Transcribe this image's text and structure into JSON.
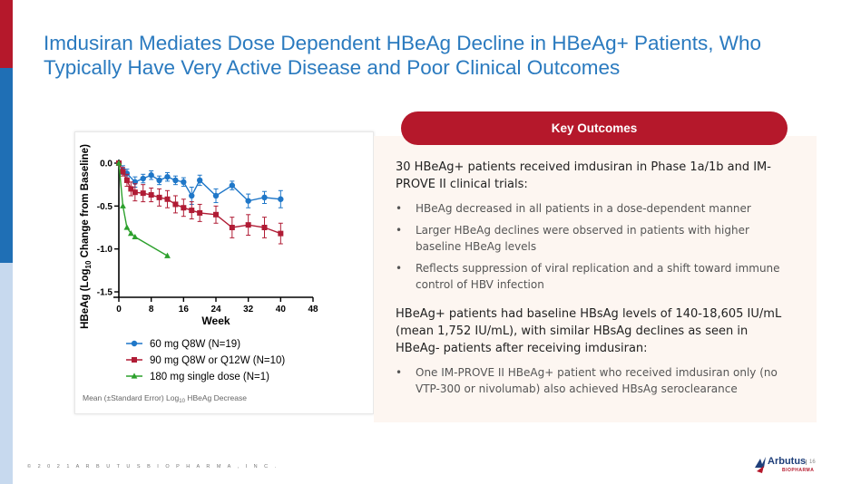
{
  "title": "Imdusiran Mediates Dose Dependent HBeAg Decline in HBeAg+ Patients, Who Typically Have Very Active Disease and Poor Clinical Outcomes",
  "key_outcomes_label": "Key Outcomes",
  "section1": {
    "heading": "30 HBeAg+ patients received imdusiran in Phase 1a/1b and IM-PROVE II clinical trials:",
    "bullets": [
      "HBeAg decreased in all patients in a dose-dependent manner",
      "Larger HBeAg declines were observed in patients with higher baseline HBeAg levels",
      "Reflects suppression of viral replication and a shift toward immune control of HBV infection"
    ]
  },
  "section2": {
    "heading": "HBeAg+ patients had baseline HBsAg levels of 140-18,605 IU/mL (mean 1,752 IU/mL), with similar HBsAg declines as seen in HBeAg- patients after receiving imdusiran:",
    "bullets": [
      "One IM-PROVE II HBeAg+ patient who received imdusiran only (no VTP-300 or nivolumab) also achieved HBsAg seroclearance"
    ]
  },
  "footer": "© 2 0 2 1   A R B U T U S   B I O P H A R M A ,   I N C .",
  "logo": {
    "name": "Arbutus",
    "sub": "BIOPHARMA"
  },
  "page_number": "16",
  "colors": {
    "brand_red": "#b5182b",
    "brand_blue": "#2a7abf",
    "series_blue": "#1f77c8",
    "series_red": "#b01c35",
    "series_green": "#2ca02c"
  },
  "chart_data": {
    "type": "line",
    "ylabel_prefix": "HBeAg (Log",
    "ylabel_sub": "10",
    "ylabel_suffix": " Change from Baseline)",
    "xlabel": "Week",
    "xlim": [
      0,
      48
    ],
    "ylim": [
      -1.5,
      0.0
    ],
    "xticks": [
      0,
      8,
      16,
      24,
      32,
      40,
      48
    ],
    "xtick_labels": [
      "0",
      "8",
      "16",
      "24",
      "32",
      "40",
      "48"
    ],
    "yticks": [
      0.0,
      -0.5,
      -1.0,
      -1.5
    ],
    "ytick_labels": [
      "0.0",
      "-0.5",
      "-1.0",
      "-1.5"
    ],
    "caption_prefix": "Mean (±Standard Error) Log",
    "caption_sub": "10",
    "caption_suffix": " HBeAg Decrease",
    "series": [
      {
        "name": "60 mg Q8W (N=19)",
        "color": "#1f77c8",
        "marker": "circle",
        "x": [
          0,
          1,
          2,
          4,
          6,
          8,
          10,
          12,
          14,
          16,
          18,
          20,
          24,
          28,
          32,
          36,
          40
        ],
        "y": [
          0.0,
          -0.08,
          -0.12,
          -0.22,
          -0.18,
          -0.14,
          -0.2,
          -0.16,
          -0.2,
          -0.22,
          -0.38,
          -0.2,
          -0.38,
          -0.26,
          -0.44,
          -0.4,
          -0.42
        ],
        "err": [
          0.02,
          0.05,
          0.05,
          0.06,
          0.05,
          0.05,
          0.05,
          0.05,
          0.05,
          0.05,
          0.1,
          0.06,
          0.08,
          0.05,
          0.08,
          0.07,
          0.1
        ]
      },
      {
        "name": "90 mg Q8W or Q12W (N=10)",
        "color": "#b01c35",
        "marker": "square",
        "x": [
          0,
          1,
          2,
          3,
          4,
          6,
          8,
          10,
          12,
          14,
          16,
          18,
          20,
          24,
          28,
          32,
          36,
          40
        ],
        "y": [
          0.0,
          -0.1,
          -0.2,
          -0.3,
          -0.34,
          -0.35,
          -0.37,
          -0.4,
          -0.42,
          -0.48,
          -0.52,
          -0.55,
          -0.58,
          -0.6,
          -0.75,
          -0.72,
          -0.75,
          -0.82
        ],
        "err": [
          0.02,
          0.05,
          0.07,
          0.08,
          0.1,
          0.1,
          0.08,
          0.1,
          0.1,
          0.1,
          0.1,
          0.1,
          0.1,
          0.1,
          0.12,
          0.12,
          0.12,
          0.12
        ]
      },
      {
        "name": "180 mg single dose (N=1)",
        "color": "#2ca02c",
        "marker": "triangle",
        "x": [
          0,
          1,
          2,
          3,
          4,
          12
        ],
        "y": [
          0.0,
          -0.5,
          -0.75,
          -0.82,
          -0.86,
          -1.08
        ],
        "err": [
          0,
          0,
          0,
          0,
          0,
          0
        ]
      }
    ]
  }
}
